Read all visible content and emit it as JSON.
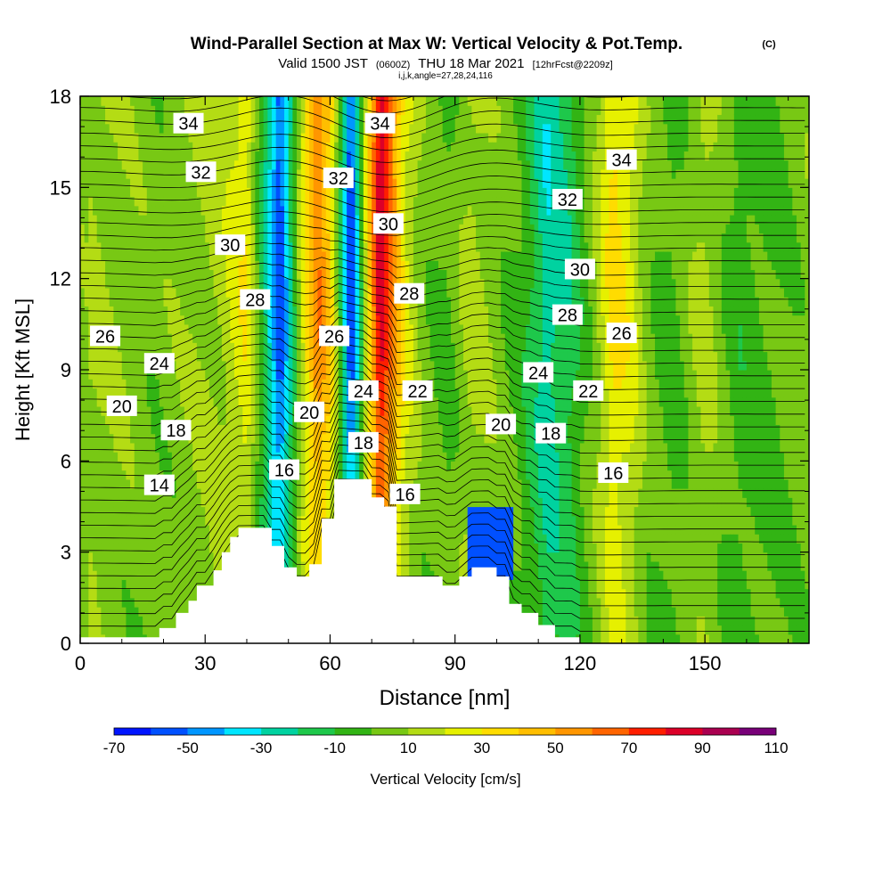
{
  "chart_data": {
    "type": "heatmap",
    "title": "Wind-Parallel Section at Max W: Vertical Velocity & Pot.Temp.",
    "title_mark": "(C)",
    "subtitle": {
      "prefix": "Valid 1500 JST",
      "utc": "(0600Z)",
      "date": "THU 18 Mar 2021",
      "forecast": "[12hrFcst@2209z]"
    },
    "indices": "i,j,k,angle=27,28,24,116",
    "xlabel": "Distance [nm]",
    "ylabel": "Height [Kft MSL]",
    "xlim": [
      0,
      175
    ],
    "ylim": [
      0,
      18
    ],
    "xticks": [
      "0",
      "30",
      "60",
      "90",
      "120",
      "150"
    ],
    "xtick_values": [
      0,
      30,
      60,
      90,
      120,
      150
    ],
    "yticks": [
      "0",
      "3",
      "6",
      "9",
      "12",
      "15",
      "18"
    ],
    "ytick_values": [
      0,
      3,
      6,
      9,
      12,
      15,
      18
    ],
    "colorbar": {
      "label": "Vertical Velocity [cm/s]",
      "ticks": [
        "-70",
        "-50",
        "-30",
        "-10",
        "10",
        "30",
        "50",
        "70",
        "90",
        "110"
      ],
      "tick_values": [
        -70,
        -50,
        -30,
        -10,
        10,
        30,
        50,
        70,
        90,
        110
      ],
      "bins": [
        -70,
        -60,
        -50,
        -40,
        -30,
        -20,
        -10,
        0,
        10,
        20,
        30,
        40,
        50,
        60,
        70,
        80,
        90,
        100,
        110
      ],
      "colors": [
        "#0014ff",
        "#0050ff",
        "#0096ff",
        "#00e6ff",
        "#00d2a0",
        "#1ec84b",
        "#32b414",
        "#78c814",
        "#b4dc14",
        "#e6f000",
        "#ffdc00",
        "#ffbe00",
        "#ff9600",
        "#ff6400",
        "#ff1e00",
        "#dc0028",
        "#aa0050",
        "#780078"
      ]
    },
    "terrain_kft": [
      [
        0,
        0.2
      ],
      [
        19,
        0.2
      ],
      [
        19,
        0.5
      ],
      [
        23,
        0.5
      ],
      [
        23,
        1.0
      ],
      [
        26,
        1.0
      ],
      [
        26,
        1.4
      ],
      [
        28,
        1.4
      ],
      [
        28,
        1.9
      ],
      [
        32,
        1.9
      ],
      [
        32,
        2.4
      ],
      [
        34,
        2.4
      ],
      [
        34,
        3.0
      ],
      [
        36,
        3.0
      ],
      [
        36,
        3.5
      ],
      [
        38,
        3.5
      ],
      [
        38,
        3.8
      ],
      [
        46,
        3.8
      ],
      [
        46,
        3.2
      ],
      [
        49,
        3.2
      ],
      [
        49,
        2.5
      ],
      [
        52,
        2.5
      ],
      [
        52,
        2.2
      ],
      [
        55,
        2.2
      ],
      [
        55,
        2.6
      ],
      [
        58,
        2.6
      ],
      [
        58,
        4.1
      ],
      [
        61,
        4.1
      ],
      [
        61,
        5.4
      ],
      [
        70,
        5.4
      ],
      [
        70,
        4.8
      ],
      [
        73,
        4.8
      ],
      [
        73,
        4.5
      ],
      [
        76,
        4.5
      ],
      [
        76,
        2.2
      ],
      [
        87,
        2.2
      ],
      [
        87,
        1.9
      ],
      [
        91,
        1.9
      ],
      [
        91,
        2.2
      ],
      [
        94,
        2.2
      ],
      [
        94,
        2.5
      ],
      [
        100,
        2.5
      ],
      [
        100,
        2.2
      ],
      [
        103,
        2.2
      ],
      [
        103,
        1.3
      ],
      [
        106,
        1.3
      ],
      [
        106,
        1.0
      ],
      [
        110,
        1.0
      ],
      [
        110,
        0.6
      ],
      [
        114,
        0.6
      ],
      [
        114,
        0.2
      ],
      [
        120,
        0.2
      ],
      [
        120,
        -0.2
      ],
      [
        175,
        -0.2
      ]
    ],
    "w_columns": [
      {
        "x": 2,
        "w": 12
      },
      {
        "x": 10,
        "w": 8
      },
      {
        "x": 18,
        "w": 4
      },
      {
        "x": 26,
        "w": 8
      },
      {
        "x": 34,
        "w": 14
      },
      {
        "x": 40,
        "w": 30
      },
      {
        "x": 45,
        "w": -25
      },
      {
        "x": 48,
        "w": -60
      },
      {
        "x": 51,
        "w": -15
      },
      {
        "x": 54,
        "w": 30
      },
      {
        "x": 57,
        "w": 60
      },
      {
        "x": 60,
        "w": 40
      },
      {
        "x": 63,
        "w": -20
      },
      {
        "x": 65,
        "w": -65
      },
      {
        "x": 67,
        "w": -20
      },
      {
        "x": 69,
        "w": 30
      },
      {
        "x": 72,
        "w": 90
      },
      {
        "x": 75,
        "w": 60
      },
      {
        "x": 78,
        "w": 25
      },
      {
        "x": 82,
        "w": 6
      },
      {
        "x": 88,
        "w": -2
      },
      {
        "x": 94,
        "w": 14
      },
      {
        "x": 100,
        "w": 6
      },
      {
        "x": 106,
        "w": -4
      },
      {
        "x": 112,
        "w": -28
      },
      {
        "x": 118,
        "w": -16
      },
      {
        "x": 124,
        "w": 10
      },
      {
        "x": 128,
        "w": 35
      },
      {
        "x": 132,
        "w": 25
      },
      {
        "x": 136,
        "w": 6
      },
      {
        "x": 142,
        "w": -4
      },
      {
        "x": 150,
        "w": 14
      },
      {
        "x": 158,
        "w": -6
      },
      {
        "x": 166,
        "w": -2
      },
      {
        "x": 175,
        "w": 6
      }
    ],
    "theta_labels": [
      {
        "label": "34",
        "x": 26,
        "y": 17.1
      },
      {
        "label": "32",
        "x": 29,
        "y": 15.5
      },
      {
        "label": "30",
        "x": 36,
        "y": 13.1
      },
      {
        "label": "28",
        "x": 42,
        "y": 11.3
      },
      {
        "label": "26",
        "x": 6,
        "y": 10.1
      },
      {
        "label": "24",
        "x": 19,
        "y": 9.2
      },
      {
        "label": "20",
        "x": 10,
        "y": 7.8
      },
      {
        "label": "18",
        "x": 23,
        "y": 7.0
      },
      {
        "label": "14",
        "x": 19,
        "y": 5.2
      },
      {
        "label": "34",
        "x": 72,
        "y": 17.1
      },
      {
        "label": "32",
        "x": 62,
        "y": 15.3
      },
      {
        "label": "30",
        "x": 74,
        "y": 13.8
      },
      {
        "label": "28",
        "x": 79,
        "y": 11.5
      },
      {
        "label": "26",
        "x": 61,
        "y": 10.1
      },
      {
        "label": "24",
        "x": 68,
        "y": 8.3
      },
      {
        "label": "22",
        "x": 81,
        "y": 8.3
      },
      {
        "label": "20",
        "x": 55,
        "y": 7.6
      },
      {
        "label": "18",
        "x": 68,
        "y": 6.6
      },
      {
        "label": "16",
        "x": 49,
        "y": 5.7
      },
      {
        "label": "16",
        "x": 78,
        "y": 4.9
      },
      {
        "label": "34",
        "x": 130,
        "y": 15.9
      },
      {
        "label": "32",
        "x": 117,
        "y": 14.6
      },
      {
        "label": "30",
        "x": 120,
        "y": 12.3
      },
      {
        "label": "28",
        "x": 117,
        "y": 10.8
      },
      {
        "label": "26",
        "x": 130,
        "y": 10.2
      },
      {
        "label": "24",
        "x": 110,
        "y": 8.9
      },
      {
        "label": "22",
        "x": 122,
        "y": 8.3
      },
      {
        "label": "20",
        "x": 101,
        "y": 7.2
      },
      {
        "label": "18",
        "x": 113,
        "y": 6.9
      },
      {
        "label": "16",
        "x": 128,
        "y": 5.6
      }
    ]
  }
}
